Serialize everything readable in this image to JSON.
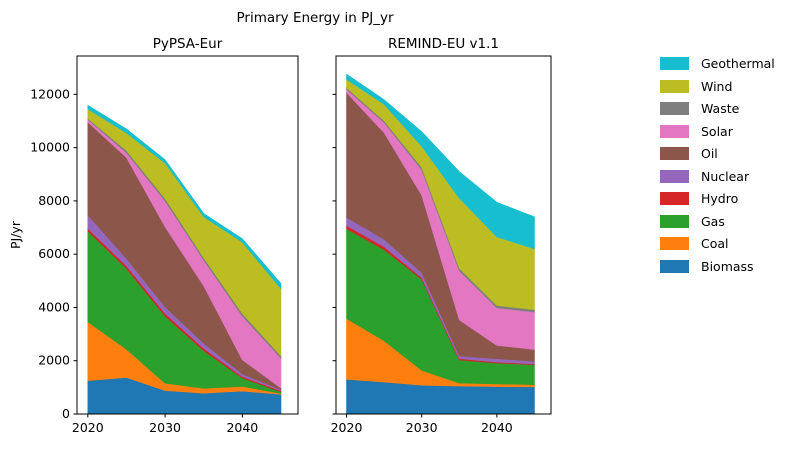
{
  "figure": {
    "title": "Primary Energy in PJ_yr",
    "background": "#ffffff"
  },
  "chart_data": [
    {
      "type": "area",
      "stacked": true,
      "title": "PyPSA-Eur",
      "ylabel": "PJ/yr",
      "show_ytick_labels": true,
      "x": [
        2020,
        2025,
        2030,
        2035,
        2040,
        2045
      ],
      "xticks": [
        2020,
        2030,
        2040
      ],
      "yticks": [
        0,
        2000,
        4000,
        6000,
        8000,
        10000,
        12000
      ],
      "ylim": [
        0,
        13440
      ],
      "xlim": [
        2018.6,
        2047.2
      ],
      "grid": false,
      "series": [
        {
          "name": "Biomass",
          "color": "#1f77b4",
          "values": [
            1250,
            1370,
            880,
            780,
            860,
            740
          ]
        },
        {
          "name": "Coal",
          "color": "#ff7f0e",
          "values": [
            2210,
            1060,
            275,
            185,
            175,
            30
          ]
        },
        {
          "name": "Gas",
          "color": "#2ca02c",
          "values": [
            3410,
            3030,
            2520,
            1410,
            315,
            60
          ]
        },
        {
          "name": "Hydro",
          "color": "#d62728",
          "values": [
            100,
            100,
            100,
            90,
            60,
            40
          ]
        },
        {
          "name": "Nuclear",
          "color": "#9467bd",
          "values": [
            500,
            280,
            250,
            190,
            90,
            40
          ]
        },
        {
          "name": "Oil",
          "color": "#8c564b",
          "values": [
            3490,
            3790,
            3000,
            2150,
            530,
            60
          ]
        },
        {
          "name": "Solar",
          "color": "#e377c2",
          "values": [
            100,
            175,
            975,
            975,
            1640,
            1130
          ]
        },
        {
          "name": "Waste",
          "color": "#7f7f7f",
          "values": [
            40,
            87,
            90,
            87,
            100,
            80
          ]
        },
        {
          "name": "Wind",
          "color": "#bcbd22",
          "values": [
            350,
            660,
            1330,
            1535,
            2680,
            2520
          ]
        },
        {
          "name": "Geothermal",
          "color": "#17becf",
          "values": [
            140,
            150,
            125,
            127,
            130,
            200
          ]
        }
      ]
    },
    {
      "type": "area",
      "stacked": true,
      "title": "REMIND-EU v1.1",
      "ylabel": null,
      "show_ytick_labels": false,
      "x": [
        2020,
        2025,
        2030,
        2035,
        2040,
        2045
      ],
      "xticks": [
        2020,
        2030,
        2040
      ],
      "yticks": [
        0,
        2000,
        4000,
        6000,
        8000,
        10000,
        12000
      ],
      "ylim": [
        0,
        13440
      ],
      "xlim": [
        2018.6,
        2047.2
      ],
      "grid": false,
      "series": [
        {
          "name": "Biomass",
          "color": "#1f77b4",
          "values": [
            1300,
            1200,
            1080,
            1050,
            1030,
            1020
          ]
        },
        {
          "name": "Coal",
          "color": "#ff7f0e",
          "values": [
            2280,
            1550,
            560,
            110,
            100,
            80
          ]
        },
        {
          "name": "Gas",
          "color": "#2ca02c",
          "values": [
            3370,
            3420,
            3420,
            870,
            780,
            750
          ]
        },
        {
          "name": "Hydro",
          "color": "#d62728",
          "values": [
            125,
            110,
            60,
            50,
            40,
            30
          ]
        },
        {
          "name": "Nuclear",
          "color": "#9467bd",
          "values": [
            310,
            280,
            190,
            100,
            125,
            100
          ]
        },
        {
          "name": "Oil",
          "color": "#8c564b",
          "values": [
            4680,
            4000,
            2900,
            1350,
            500,
            440
          ]
        },
        {
          "name": "Solar",
          "color": "#e377c2",
          "values": [
            125,
            380,
            960,
            1850,
            1410,
            1410
          ]
        },
        {
          "name": "Waste",
          "color": "#7f7f7f",
          "values": [
            60,
            70,
            90,
            95,
            90,
            85
          ]
        },
        {
          "name": "Wind",
          "color": "#bcbd22",
          "values": [
            315,
            615,
            790,
            2625,
            2575,
            2285
          ]
        },
        {
          "name": "Geothermal",
          "color": "#17becf",
          "values": [
            195,
            175,
            550,
            1000,
            1300,
            1200
          ]
        }
      ]
    }
  ],
  "legend": {
    "items": [
      {
        "label": "Geothermal",
        "color": "#17becf"
      },
      {
        "label": "Wind",
        "color": "#bcbd22"
      },
      {
        "label": "Waste",
        "color": "#7f7f7f"
      },
      {
        "label": "Solar",
        "color": "#e377c2"
      },
      {
        "label": "Oil",
        "color": "#8c564b"
      },
      {
        "label": "Nuclear",
        "color": "#9467bd"
      },
      {
        "label": "Hydro",
        "color": "#d62728"
      },
      {
        "label": "Gas",
        "color": "#2ca02c"
      },
      {
        "label": "Coal",
        "color": "#ff7f0e"
      },
      {
        "label": "Biomass",
        "color": "#1f77b4"
      }
    ]
  }
}
